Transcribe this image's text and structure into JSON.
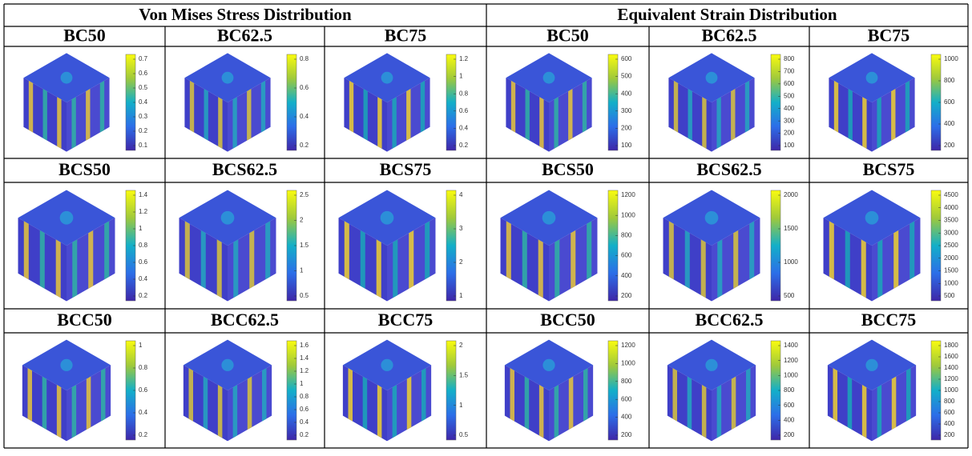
{
  "header": {
    "groups": [
      "Von Mises Stress Distribution",
      "Equivalent Strain Distribution"
    ]
  },
  "sections": [
    {
      "labels": [
        "BC50",
        "BC62.5",
        "BC75",
        "BC50",
        "BC62.5",
        "BC75"
      ],
      "colorbars": [
        [
          "0.7",
          "0.6",
          "0.5",
          "0.4",
          "0.3",
          "0.2",
          "0.1"
        ],
        [
          "0.8",
          "0.6",
          "0.4",
          "0.2"
        ],
        [
          "1.2",
          "1",
          "0.8",
          "0.6",
          "0.4",
          "0.2"
        ],
        [
          "600",
          "500",
          "400",
          "300",
          "200",
          "100"
        ],
        [
          "800",
          "700",
          "600",
          "500",
          "400",
          "300",
          "200",
          "100"
        ],
        [
          "1000",
          "800",
          "600",
          "400",
          "200"
        ]
      ]
    },
    {
      "labels": [
        "BCS50",
        "BCS62.5",
        "BCS75",
        "BCS50",
        "BCS62.5",
        "BCS75"
      ],
      "colorbars": [
        [
          "1.4",
          "1.2",
          "1",
          "0.8",
          "0.6",
          "0.4",
          "0.2"
        ],
        [
          "2.5",
          "2",
          "1.5",
          "1",
          "0.5"
        ],
        [
          "4",
          "3",
          "2",
          "1"
        ],
        [
          "1200",
          "1000",
          "800",
          "600",
          "400",
          "200"
        ],
        [
          "2000",
          "1500",
          "1000",
          "500"
        ],
        [
          "4500",
          "4000",
          "3500",
          "3000",
          "2500",
          "2000",
          "1500",
          "1000",
          "500"
        ]
      ]
    },
    {
      "labels": [
        "BCC50",
        "BCC62.5",
        "BCC75",
        "BCC50",
        "BCC62.5",
        "BCC75"
      ],
      "colorbars": [
        [
          "1",
          "0.8",
          "0.6",
          "0.4",
          "0.2"
        ],
        [
          "1.6",
          "1.4",
          "1.2",
          "1",
          "0.8",
          "0.6",
          "0.4",
          "0.2"
        ],
        [
          "2",
          "1.5",
          "1",
          "0.5"
        ],
        [
          "1200",
          "1000",
          "800",
          "600",
          "400",
          "200"
        ],
        [
          "1400",
          "1200",
          "1000",
          "800",
          "600",
          "400",
          "200"
        ],
        [
          "1800",
          "1600",
          "1400",
          "1200",
          "1000",
          "800",
          "600",
          "400",
          "200"
        ]
      ]
    }
  ]
}
